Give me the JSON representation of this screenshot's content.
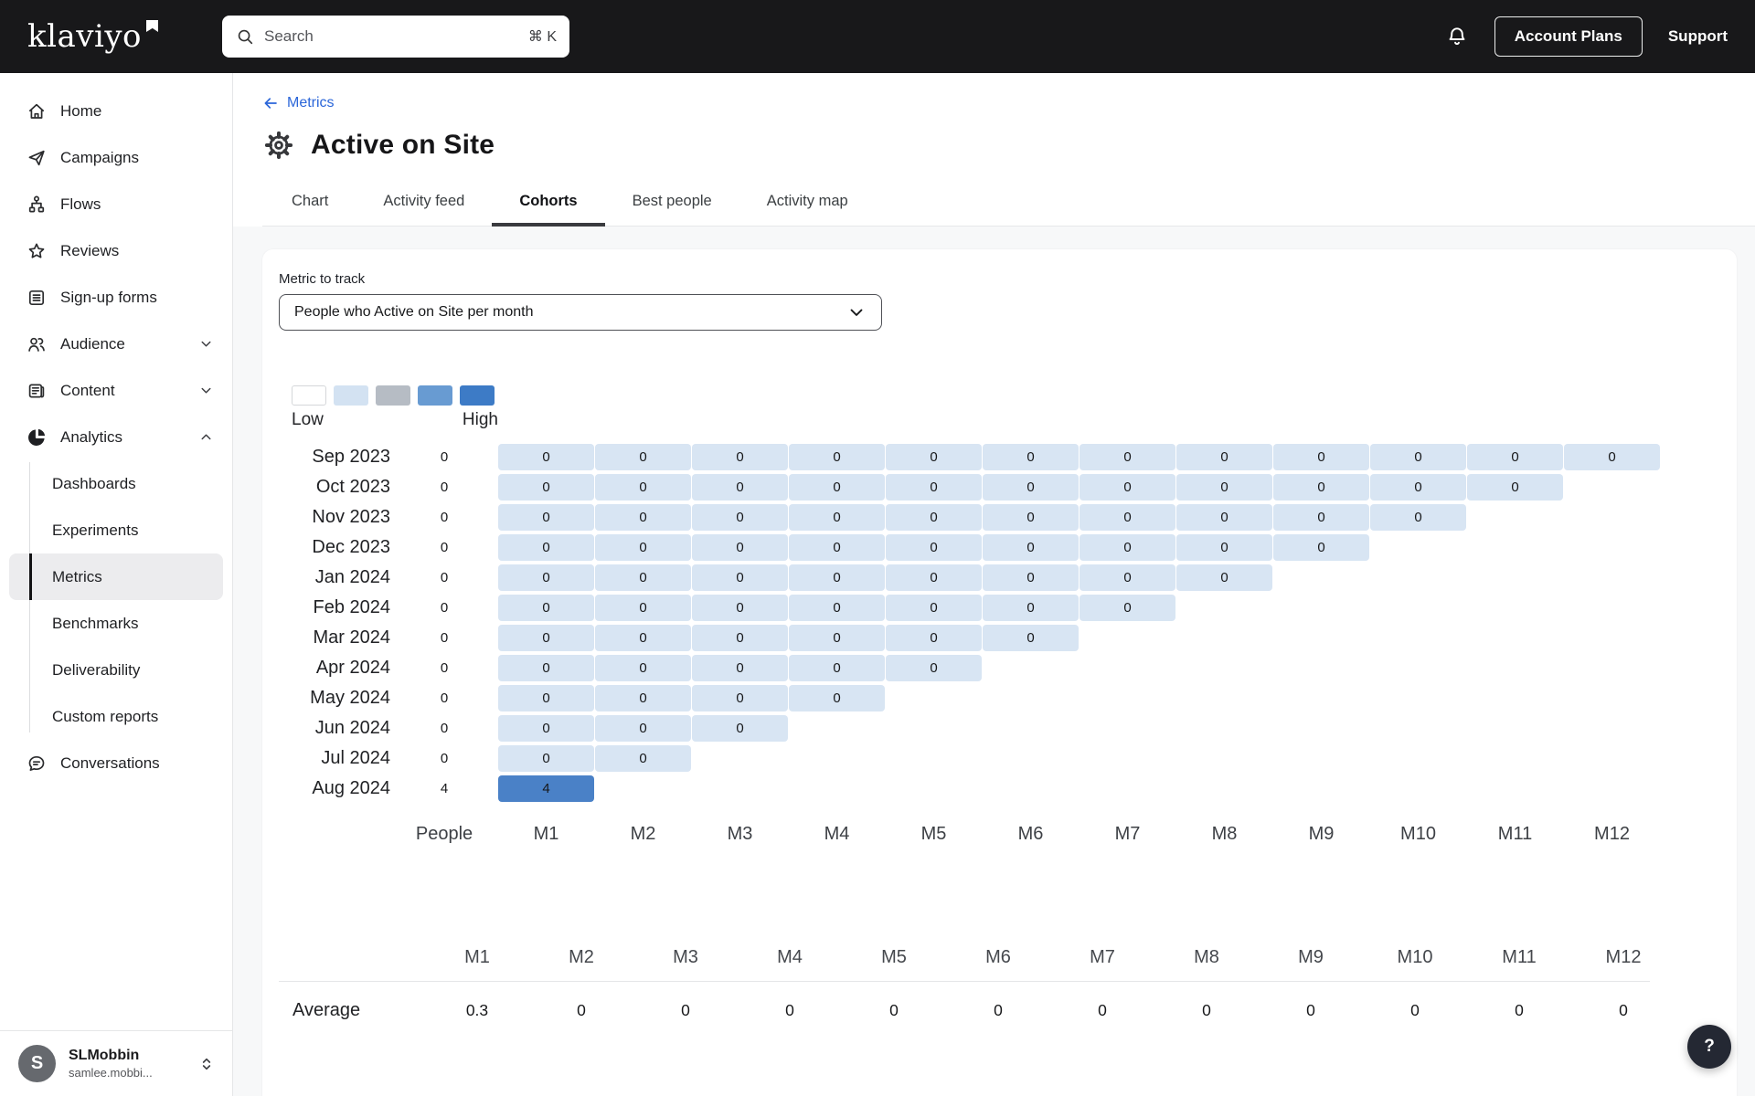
{
  "topbar": {
    "logo": "klaviyo",
    "search": {
      "placeholder": "Search",
      "shortcut": "⌘ K"
    },
    "account_plans_label": "Account Plans",
    "support_label": "Support"
  },
  "sidebar": {
    "items": [
      {
        "label": "Home",
        "icon": "home"
      },
      {
        "label": "Campaigns",
        "icon": "send"
      },
      {
        "label": "Flows",
        "icon": "flows"
      },
      {
        "label": "Reviews",
        "icon": "star"
      },
      {
        "label": "Sign-up forms",
        "icon": "form"
      },
      {
        "label": "Audience",
        "icon": "people",
        "chevron": "down"
      },
      {
        "label": "Content",
        "icon": "content",
        "chevron": "down"
      },
      {
        "label": "Analytics",
        "icon": "pie",
        "chevron": "up"
      }
    ],
    "analytics_children": [
      {
        "label": "Dashboards",
        "selected": false
      },
      {
        "label": "Experiments",
        "selected": false
      },
      {
        "label": "Metrics",
        "selected": true
      },
      {
        "label": "Benchmarks",
        "selected": false
      },
      {
        "label": "Deliverability",
        "selected": false
      },
      {
        "label": "Custom reports",
        "selected": false
      }
    ],
    "conversations_label": "Conversations",
    "user": {
      "initial": "S",
      "name": "SLMobbin",
      "email": "samlee.mobbi..."
    }
  },
  "header": {
    "breadcrumb": "Metrics",
    "title": "Active on Site",
    "tabs": [
      "Chart",
      "Activity feed",
      "Cohorts",
      "Best people",
      "Activity map"
    ],
    "active_tab": "Cohorts"
  },
  "cohorts": {
    "metric_label": "Metric to track",
    "metric_value": "People who Active on Site per month",
    "legend": {
      "low_label": "Low",
      "high_label": "High",
      "swatch_colors": [
        "#ffffff",
        "#d3e2f2",
        "#b6bcc4",
        "#689bd2",
        "#3d7bc6"
      ],
      "cell_low_color": "#d8e5f3",
      "cell_high_color": "#4a81c7"
    },
    "people_column": "People",
    "month_columns": [
      "M1",
      "M2",
      "M3",
      "M4",
      "M5",
      "M6",
      "M7",
      "M8",
      "M9",
      "M10",
      "M11",
      "M12"
    ],
    "rows": [
      {
        "month": "Sep 2023",
        "people": "0",
        "values": [
          0,
          0,
          0,
          0,
          0,
          0,
          0,
          0,
          0,
          0,
          0,
          0
        ]
      },
      {
        "month": "Oct 2023",
        "people": "0",
        "values": [
          0,
          0,
          0,
          0,
          0,
          0,
          0,
          0,
          0,
          0,
          0
        ]
      },
      {
        "month": "Nov 2023",
        "people": "0",
        "values": [
          0,
          0,
          0,
          0,
          0,
          0,
          0,
          0,
          0,
          0
        ]
      },
      {
        "month": "Dec 2023",
        "people": "0",
        "values": [
          0,
          0,
          0,
          0,
          0,
          0,
          0,
          0,
          0
        ]
      },
      {
        "month": "Jan 2024",
        "people": "0",
        "values": [
          0,
          0,
          0,
          0,
          0,
          0,
          0,
          0
        ]
      },
      {
        "month": "Feb 2024",
        "people": "0",
        "values": [
          0,
          0,
          0,
          0,
          0,
          0,
          0
        ]
      },
      {
        "month": "Mar 2024",
        "people": "0",
        "values": [
          0,
          0,
          0,
          0,
          0,
          0
        ]
      },
      {
        "month": "Apr 2024",
        "people": "0",
        "values": [
          0,
          0,
          0,
          0,
          0
        ]
      },
      {
        "month": "May 2024",
        "people": "0",
        "values": [
          0,
          0,
          0,
          0
        ]
      },
      {
        "month": "Jun 2024",
        "people": "0",
        "values": [
          0,
          0,
          0
        ]
      },
      {
        "month": "Jul 2024",
        "people": "0",
        "values": [
          0,
          0
        ]
      },
      {
        "month": "Aug 2024",
        "people": "4",
        "values": [
          4
        ]
      }
    ],
    "average": {
      "label": "Average",
      "values": [
        "0.3",
        "0",
        "0",
        "0",
        "0",
        "0",
        "0",
        "0",
        "0",
        "0",
        "0",
        "0"
      ]
    }
  },
  "help_label": "?"
}
